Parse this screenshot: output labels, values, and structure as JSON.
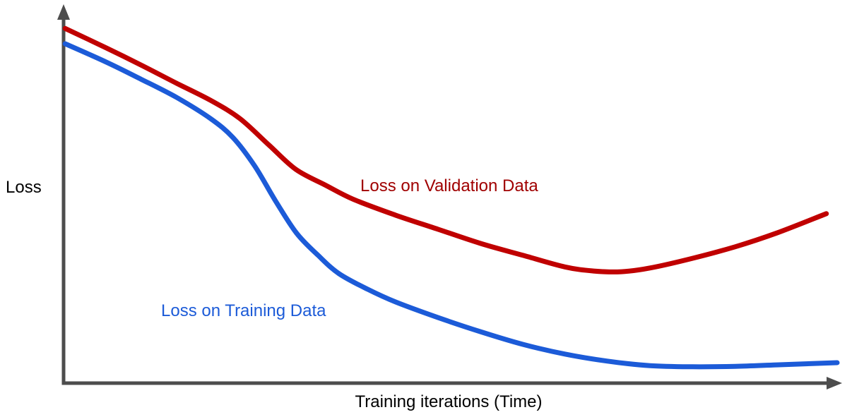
{
  "figure": {
    "axis_color": "#4d4d4d",
    "text_color": "#000000",
    "background": "#ffffff"
  },
  "chart_data": {
    "type": "line",
    "title": "",
    "xlabel": "Training iterations (Time)",
    "ylabel": "Loss",
    "x_range": [
      0,
      100
    ],
    "y_range": [
      0,
      1
    ],
    "grid": false,
    "legend": "inline-annotations",
    "series": [
      {
        "name": "Loss on Validation Data",
        "color": "#c00000",
        "label_color": "#a00000",
        "stroke_width": 7,
        "points": [
          [
            0.2,
            0.952
          ],
          [
            5.5,
            0.9
          ],
          [
            10.0,
            0.854
          ],
          [
            14.6,
            0.805
          ],
          [
            19.0,
            0.759
          ],
          [
            22.8,
            0.71
          ],
          [
            26.5,
            0.64
          ],
          [
            30.0,
            0.574
          ],
          [
            33.8,
            0.532
          ],
          [
            37.4,
            0.494
          ],
          [
            42.9,
            0.451
          ],
          [
            48.4,
            0.413
          ],
          [
            53.9,
            0.375
          ],
          [
            59.4,
            0.343
          ],
          [
            64.8,
            0.312
          ],
          [
            68.5,
            0.301
          ],
          [
            72.1,
            0.299
          ],
          [
            75.8,
            0.309
          ],
          [
            81.3,
            0.335
          ],
          [
            86.8,
            0.366
          ],
          [
            92.2,
            0.403
          ],
          [
            98.6,
            0.455
          ]
        ]
      },
      {
        "name": "Loss on Training Data",
        "color": "#1c5bd8",
        "label_color": "#1c5bd8",
        "stroke_width": 7,
        "points": [
          [
            0.2,
            0.911
          ],
          [
            5.5,
            0.862
          ],
          [
            10.0,
            0.816
          ],
          [
            14.6,
            0.767
          ],
          [
            19.0,
            0.71
          ],
          [
            21.9,
            0.659
          ],
          [
            24.7,
            0.583
          ],
          [
            27.4,
            0.489
          ],
          [
            30.1,
            0.403
          ],
          [
            32.9,
            0.343
          ],
          [
            35.6,
            0.294
          ],
          [
            39.3,
            0.252
          ],
          [
            42.9,
            0.218
          ],
          [
            48.4,
            0.176
          ],
          [
            53.9,
            0.138
          ],
          [
            59.4,
            0.104
          ],
          [
            64.8,
            0.078
          ],
          [
            70.3,
            0.059
          ],
          [
            75.8,
            0.047
          ],
          [
            81.3,
            0.044
          ],
          [
            86.8,
            0.045
          ],
          [
            92.2,
            0.049
          ],
          [
            100.0,
            0.055
          ]
        ]
      }
    ],
    "annotations": [
      {
        "text": "Loss on Validation Data",
        "series": 0
      },
      {
        "text": "Loss on Training Data",
        "series": 1
      }
    ]
  }
}
